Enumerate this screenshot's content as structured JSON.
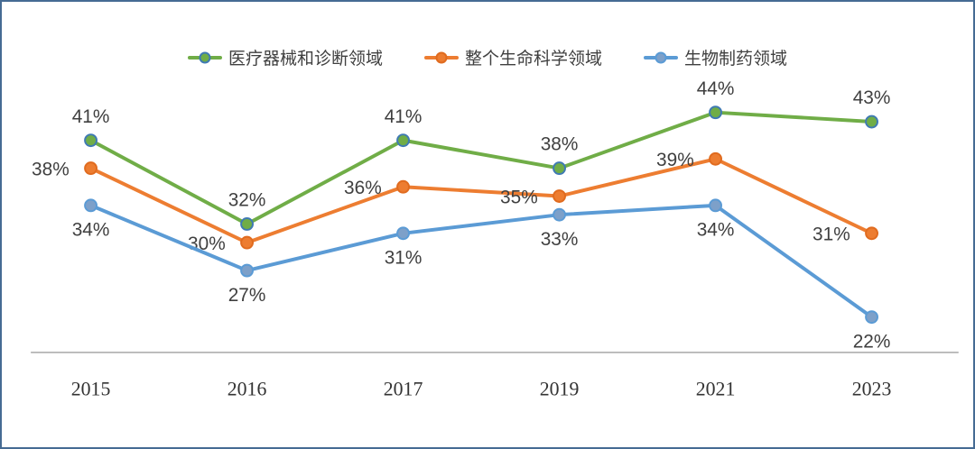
{
  "figure": {
    "background": "#ffffff",
    "border_inner_color": "#466b93",
    "border_outer_color": "#9db3cb"
  },
  "legend": {
    "position": "top",
    "items": [
      {
        "label": "医疗器械和诊断领域",
        "color": "#70AD47"
      },
      {
        "label": "整个生命科学领域",
        "color": "#ED7D31"
      },
      {
        "label": "生物制药领域",
        "color": "#5B9BD5"
      }
    ]
  },
  "chart_data": {
    "type": "line",
    "categories": [
      "2015",
      "2016",
      "2017",
      "2019",
      "2021",
      "2023"
    ],
    "series": [
      {
        "name": "医疗器械和诊断领域",
        "color": "#70AD47",
        "marker_fill": "#70AD47",
        "marker_stroke": "#3f7ab3",
        "values": [
          41,
          32,
          41,
          38,
          44,
          43
        ],
        "labels": [
          "41%",
          "32%",
          "41%",
          "38%",
          "44%",
          "43%"
        ],
        "label_position": "above"
      },
      {
        "name": "整个生命科学领域",
        "color": "#ED7D31",
        "marker_fill": "#ED7D31",
        "marker_stroke": "#e06b1f",
        "values": [
          38,
          30,
          36,
          35,
          39,
          31
        ],
        "labels": [
          "38%",
          "30%",
          "36%",
          "35%",
          "39%",
          "31%"
        ],
        "label_position": "left"
      },
      {
        "name": "生物制药领域",
        "color": "#5B9BD5",
        "marker_fill": "#7da0c9",
        "marker_stroke": "#5B9BD5",
        "values": [
          34,
          27,
          31,
          33,
          34,
          22
        ],
        "labels": [
          "34%",
          "27%",
          "31%",
          "33%",
          "34%",
          "22%"
        ],
        "label_position": "below"
      }
    ],
    "ylim": [
      18,
      50
    ],
    "grid": false,
    "legend_position": "top",
    "x_axis_line_color": "#a8a8a8",
    "text_color": "#3f3f3f",
    "label_suffix": "%"
  }
}
